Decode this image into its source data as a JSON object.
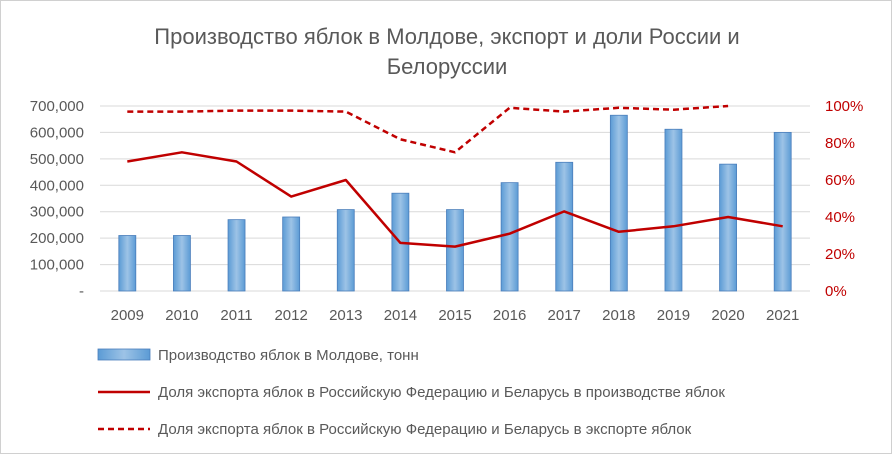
{
  "chart_data": {
    "type": "bar",
    "title_lines": [
      "Производство яблок в Молдове, экспорт и доли России и",
      "Белоруссии"
    ],
    "categories": [
      "2009",
      "2010",
      "2011",
      "2012",
      "2013",
      "2014",
      "2015",
      "2016",
      "2017",
      "2018",
      "2019",
      "2020",
      "2021"
    ],
    "y_left": {
      "ylim": [
        0,
        700000
      ],
      "ticks": [
        0,
        100000,
        200000,
        300000,
        400000,
        500000,
        600000,
        700000
      ],
      "tick_labels": [
        "-",
        "100,000",
        "200,000",
        "300,000",
        "400,000",
        "500,000",
        "600,000",
        "700,000"
      ]
    },
    "y_right": {
      "ylim": [
        0,
        1.0
      ],
      "ticks": [
        0,
        0.2,
        0.4,
        0.6,
        0.8,
        1.0
      ],
      "tick_labels": [
        "0%",
        "20%",
        "40%",
        "60%",
        "80%",
        "100%"
      ]
    },
    "grid": "horizontal",
    "legend_position": "bottom",
    "series": [
      {
        "name": "Производство яблок в Молдове, тонн",
        "kind": "bar",
        "axis": "left",
        "color": "#9dc3e6",
        "values": [
          210000,
          210000,
          270000,
          280000,
          308000,
          370000,
          308000,
          410000,
          487000,
          665000,
          612000,
          480000,
          600000
        ]
      },
      {
        "name": "Доля экспорта яблок в Российскую Федерацию и Беларусь в производстве яблок",
        "kind": "line",
        "axis": "right",
        "color": "#c00000",
        "style": "solid",
        "values": [
          0.7,
          0.75,
          0.7,
          0.51,
          0.6,
          0.26,
          0.24,
          0.31,
          0.43,
          0.32,
          0.35,
          0.4,
          0.35
        ]
      },
      {
        "name": "Доля экспорта яблок в Российскую Федерацию и Беларусь в экспорте яблок",
        "kind": "line",
        "axis": "right",
        "color": "#c00000",
        "style": "dashed",
        "values": [
          0.97,
          0.97,
          0.975,
          0.975,
          0.97,
          0.82,
          0.75,
          0.99,
          0.97,
          0.99,
          0.98,
          1.0,
          null
        ]
      }
    ]
  }
}
